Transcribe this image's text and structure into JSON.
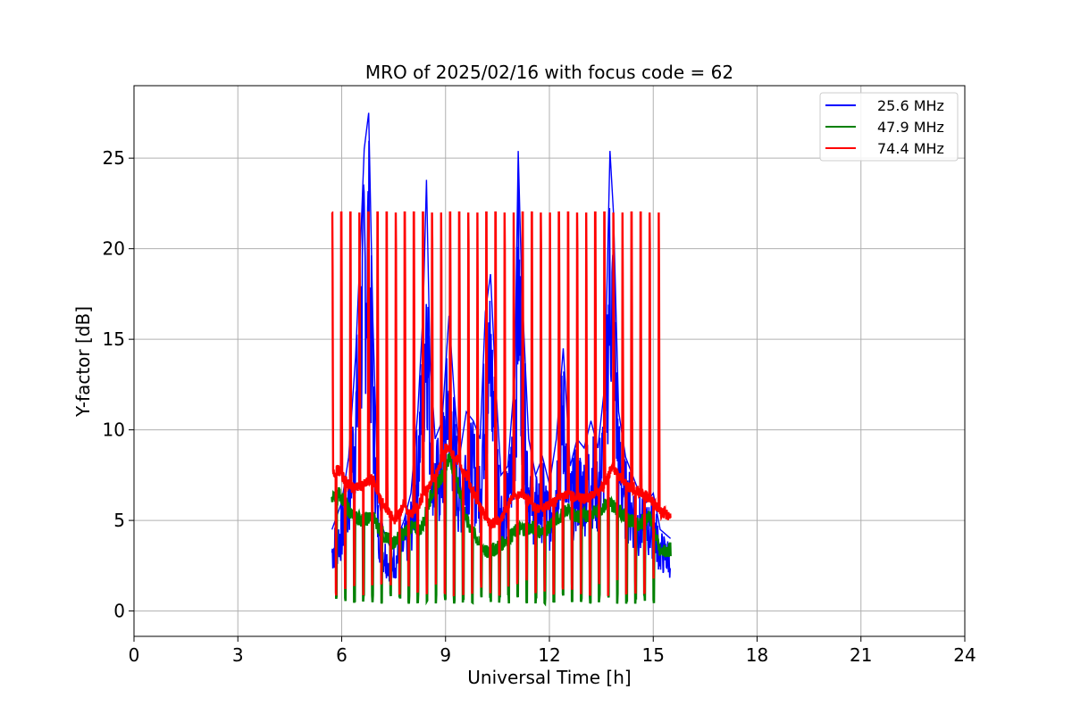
{
  "chart_data": {
    "type": "line",
    "title": "MRO of 2025/02/16 with focus code = 62",
    "xlabel": "Universal Time [h]",
    "ylabel": "Y-factor [dB]",
    "xlim": [
      0,
      24
    ],
    "ylim": [
      -1.4,
      29
    ],
    "xticks": [
      0,
      3,
      6,
      9,
      12,
      15,
      18,
      21,
      24
    ],
    "yticks": [
      0,
      5,
      10,
      15,
      20,
      25
    ],
    "grid": true,
    "legend_position": "top-right",
    "calibration": {
      "start": 5.72,
      "end": 15.25,
      "period": 0.262,
      "peak_red": 22.0,
      "low_green": 0.4
    },
    "series": [
      {
        "name": "25.6 MHz",
        "color": "#0000ff",
        "x": [
          5.72,
          6.0,
          6.2,
          6.4,
          6.55,
          6.65,
          6.78,
          6.9,
          7.05,
          7.2,
          7.4,
          7.6,
          7.8,
          8.0,
          8.2,
          8.35,
          8.45,
          8.55,
          8.7,
          8.9,
          9.1,
          9.25,
          9.4,
          9.6,
          9.8,
          10.0,
          10.15,
          10.3,
          10.45,
          10.6,
          10.8,
          11.0,
          11.1,
          11.2,
          11.4,
          11.6,
          11.8,
          12.0,
          12.2,
          12.4,
          12.6,
          12.8,
          13.0,
          13.2,
          13.4,
          13.6,
          13.75,
          13.85,
          14.0,
          14.2,
          14.4,
          14.6,
          14.8,
          15.0,
          15.2,
          15.5
        ],
        "y": [
          4.5,
          6.0,
          8.5,
          14.0,
          20.5,
          25.5,
          27.5,
          16.0,
          6.5,
          4.5,
          3.5,
          4.0,
          5.0,
          6.5,
          11.0,
          16.5,
          23.8,
          14.0,
          9.5,
          10.5,
          16.3,
          12.0,
          8.5,
          11.0,
          10.5,
          9.5,
          16.5,
          18.6,
          12.5,
          7.5,
          8.0,
          13.0,
          25.4,
          18.0,
          9.5,
          7.5,
          8.5,
          7.0,
          9.5,
          14.5,
          8.0,
          9.5,
          9.0,
          10.5,
          9.0,
          12.5,
          25.4,
          22.0,
          11.0,
          8.5,
          7.5,
          6.5,
          6.0,
          6.5,
          4.5,
          4.0
        ],
        "width": 2
      },
      {
        "name": "47.9 MHz",
        "color": "#008000",
        "x": [
          5.72,
          5.9,
          6.0,
          6.3,
          6.6,
          6.9,
          7.1,
          7.3,
          7.5,
          7.8,
          8.0,
          8.3,
          8.6,
          8.9,
          9.1,
          9.3,
          9.6,
          9.9,
          10.2,
          10.5,
          10.8,
          11.1,
          11.5,
          11.8,
          12.2,
          12.5,
          12.8,
          13.1,
          13.4,
          13.7,
          14.0,
          14.3,
          14.6,
          14.9,
          15.2,
          15.5
        ],
        "y": [
          6.0,
          6.5,
          6.3,
          5.3,
          5.0,
          5.2,
          4.5,
          4.0,
          3.8,
          4.3,
          4.6,
          4.5,
          6.5,
          7.5,
          8.5,
          7.5,
          5.0,
          4.0,
          3.2,
          3.5,
          4.0,
          4.5,
          4.6,
          4.3,
          5.0,
          5.6,
          5.2,
          5.3,
          5.5,
          6.0,
          5.6,
          5.0,
          4.8,
          5.3,
          3.2,
          3.4
        ],
        "width": 3
      },
      {
        "name": "74.4 MHz",
        "color": "#ff0000",
        "x": [
          5.72,
          5.9,
          6.1,
          6.3,
          6.6,
          6.9,
          7.1,
          7.3,
          7.5,
          7.8,
          8.0,
          8.2,
          8.5,
          8.8,
          9.0,
          9.2,
          9.4,
          9.7,
          10.0,
          10.3,
          10.6,
          10.9,
          11.2,
          11.5,
          11.8,
          12.1,
          12.4,
          12.7,
          13.0,
          13.3,
          13.6,
          13.8,
          14.0,
          14.3,
          14.6,
          14.9,
          15.2,
          15.5
        ],
        "y": [
          7.5,
          7.8,
          7.2,
          6.8,
          6.9,
          7.3,
          6.2,
          5.6,
          5.0,
          5.8,
          5.3,
          5.8,
          6.8,
          7.8,
          9.0,
          8.7,
          8.2,
          7.0,
          5.7,
          4.8,
          5.0,
          6.2,
          6.5,
          5.8,
          5.6,
          6.0,
          6.5,
          6.3,
          6.2,
          6.4,
          7.0,
          8.0,
          7.5,
          6.8,
          6.6,
          6.2,
          5.5,
          5.2
        ],
        "width": 3.5
      }
    ]
  }
}
